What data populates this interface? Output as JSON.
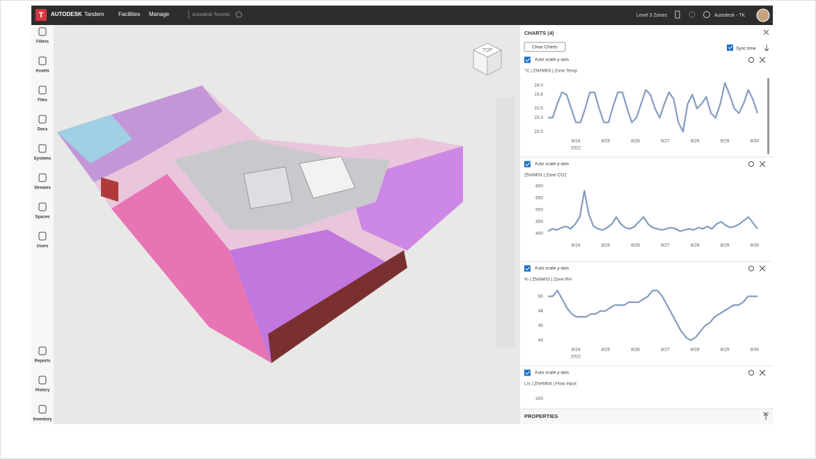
{
  "header": {
    "logo": "T",
    "brand": "AUTODESK",
    "product": "Tandem",
    "nav": [
      "Facilities",
      "Manage"
    ],
    "facility": "Autodesk Toronto",
    "zones": "Level 3 Zones",
    "user": "Autodesk - TK"
  },
  "sidebar": {
    "top": [
      "Filters",
      "Assets",
      "Files",
      "Docs",
      "Systems",
      "Streams",
      "Spaces",
      "Users"
    ],
    "bottom": [
      "Reports",
      "History",
      "Inventory"
    ]
  },
  "viewcube": {
    "face": "TOP"
  },
  "panel": {
    "title": "CHARTS (4)",
    "clear": "Clear Charts",
    "sync": "Sync time",
    "footer": "PROPERTIES",
    "charts": [
      {
        "type": "line",
        "autoscale": "Auto scale y-axis",
        "label": "°C | ZNAM03 | Zone Temp",
        "color": "#5b7fb8",
        "xticks": [
          "8/24",
          "8/25",
          "8/26",
          "8/27",
          "8/28",
          "8/29",
          "8/30"
        ],
        "year": "2022",
        "ylim": [
          22.9,
          24.1
        ],
        "yticks": [
          {
            "value": 24,
            "label": "24.0"
          },
          23.8,
          23.5,
          23.3,
          {
            "value": 23,
            "label": "23.0"
          }
        ],
        "values": [
          23.3,
          23.3,
          23.6,
          23.85,
          23.8,
          23.5,
          23.2,
          23.2,
          23.5,
          23.85,
          23.85,
          23.5,
          23.2,
          23.2,
          23.55,
          23.85,
          23.85,
          23.5,
          23.2,
          23.3,
          23.6,
          23.9,
          23.8,
          23.5,
          23.3,
          23.6,
          23.85,
          23.7,
          23.2,
          23.0,
          23.6,
          23.8,
          23.5,
          23.6,
          23.75,
          23.4,
          23.3,
          23.6,
          24.05,
          23.8,
          23.5,
          23.4,
          23.6,
          23.9,
          23.7,
          23.4
        ]
      },
      {
        "type": "line",
        "autoscale": "Auto scale y-axis",
        "label": "ZNAM03 | Zone CO2",
        "color": "#5b7fb8",
        "xticks": [
          "8/24",
          "8/25",
          "8/26",
          "8/27",
          "8/28",
          "8/29",
          "8/30"
        ],
        "ylim": [
          370,
          605
        ],
        "yticks": [
          600,
          550,
          500,
          450,
          400
        ],
        "values": [
          410,
          420,
          415,
          425,
          430,
          420,
          440,
          470,
          580,
          480,
          430,
          420,
          415,
          425,
          440,
          470,
          440,
          425,
          420,
          430,
          450,
          470,
          440,
          425,
          420,
          415,
          420,
          425,
          420,
          410,
          415,
          420,
          415,
          425,
          420,
          430,
          420,
          440,
          450,
          435,
          425,
          430,
          440,
          455,
          470,
          445,
          420
        ]
      },
      {
        "type": "line",
        "autoscale": "Auto scale y-axis",
        "label": "% | ZNAM03 | Zone RH",
        "color": "#5b7fb8",
        "xticks": [
          "8/24",
          "8/25",
          "8/26",
          "8/27",
          "8/28",
          "8/29",
          "8/30"
        ],
        "year": "2022",
        "ylim": [
          41.7,
          51.2
        ],
        "yticks": [
          50,
          {
            "value": 47.5,
            "label": "48"
          },
          45,
          {
            "value": 42.5,
            "label": "43"
          }
        ],
        "values": [
          50,
          50,
          51,
          49.5,
          48,
          47,
          46.5,
          46.5,
          46.5,
          47,
          47,
          47.5,
          47.5,
          48,
          48.5,
          48.5,
          48.5,
          49,
          49,
          49,
          49.5,
          50,
          51,
          51,
          50,
          48.5,
          47,
          45.5,
          44,
          43,
          42.5,
          43,
          44,
          45,
          45.5,
          46.5,
          47,
          47.5,
          48,
          48.5,
          48.5,
          49,
          50,
          50,
          50
        ]
      },
      {
        "type": "line",
        "autoscale": "Auto scale y-axis",
        "label": "L/s | ZNAM04 | Flow Input",
        "ylim": [
          0,
          220
        ],
        "yticks": [
          200
        ]
      }
    ]
  }
}
